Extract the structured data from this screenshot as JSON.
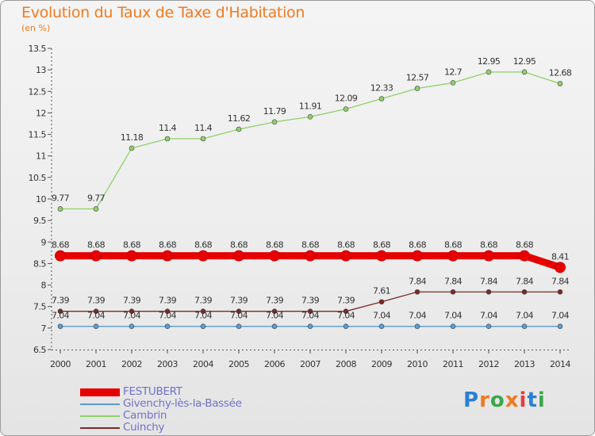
{
  "title": "Evolution du Taux de Taxe d'Habitation",
  "subtitle": "(en %)",
  "logo": {
    "letters": [
      "P",
      "r",
      "o",
      "x",
      "i",
      "t",
      "i"
    ],
    "colors": [
      "#2a7fd4",
      "#f07a1f",
      "#3ba74b",
      "#f07a1f",
      "#e63c3c",
      "#2a7fd4",
      "#3ba74b"
    ]
  },
  "chart_data": {
    "type": "line",
    "x": [
      "2000",
      "2001",
      "2002",
      "2003",
      "2004",
      "2005",
      "2006",
      "2007",
      "2008",
      "2009",
      "2010",
      "2011",
      "2012",
      "2013",
      "2014"
    ],
    "ylim": [
      6.5,
      13.5
    ],
    "yticks": [
      "6.5",
      "7",
      "7.5",
      "8",
      "8.5",
      "9",
      "9.5",
      "10",
      "10.5",
      "11",
      "11.5",
      "12",
      "12.5",
      "13",
      "13.5"
    ],
    "grid": false,
    "legend_position": "bottom-left",
    "series": [
      {
        "name": "FESTUBERT",
        "color": "#e60000",
        "values": [
          8.68,
          8.68,
          8.68,
          8.68,
          8.68,
          8.68,
          8.68,
          8.68,
          8.68,
          8.68,
          8.68,
          8.68,
          8.68,
          8.68,
          8.41
        ],
        "labels": [
          "8.68",
          "8.68",
          "8.68",
          "8.68",
          "8.68",
          "8.68",
          "8.68",
          "8.68",
          "8.68",
          "8.68",
          "8.68",
          "8.68",
          "8.68",
          "8.68",
          "8.41"
        ]
      },
      {
        "name": "Givenchy-lès-la-Bassée",
        "color": "#5b9bd5",
        "values": [
          7.04,
          7.04,
          7.04,
          7.04,
          7.04,
          7.04,
          7.04,
          7.04,
          7.04,
          7.04,
          7.04,
          7.04,
          7.04,
          7.04,
          7.04
        ],
        "labels": [
          "7.04",
          "7.04",
          "7.04",
          "7.04",
          "7.04",
          "7.04",
          "7.04",
          "7.04",
          "7.04",
          "7.04",
          "7.04",
          "7.04",
          "7.04",
          "7.04",
          "7.04"
        ]
      },
      {
        "name": "Cambrin",
        "color": "#8fd16a",
        "values": [
          9.77,
          9.77,
          11.18,
          11.4,
          11.4,
          11.62,
          11.79,
          11.91,
          12.09,
          12.33,
          12.57,
          12.7,
          12.95,
          12.95,
          12.68
        ],
        "labels": [
          "9.77",
          "9.77",
          "11.18",
          "11.4",
          "11.4",
          "11.62",
          "11.79",
          "11.91",
          "12.09",
          "12.33",
          "12.57",
          "12.7",
          "12.95",
          "12.95",
          "12.68"
        ]
      },
      {
        "name": "Cuinchy",
        "color": "#7b2a2a",
        "values": [
          7.39,
          7.39,
          7.39,
          7.39,
          7.39,
          7.39,
          7.39,
          7.39,
          7.39,
          7.61,
          7.84,
          7.84,
          7.84,
          7.84,
          7.84
        ],
        "labels": [
          "7.39",
          "7.39",
          "7.39",
          "7.39",
          "7.39",
          "7.39",
          "7.39",
          "7.39",
          "7.39",
          "7.61",
          "7.84",
          "7.84",
          "7.84",
          "7.84",
          "7.84"
        ]
      }
    ]
  }
}
